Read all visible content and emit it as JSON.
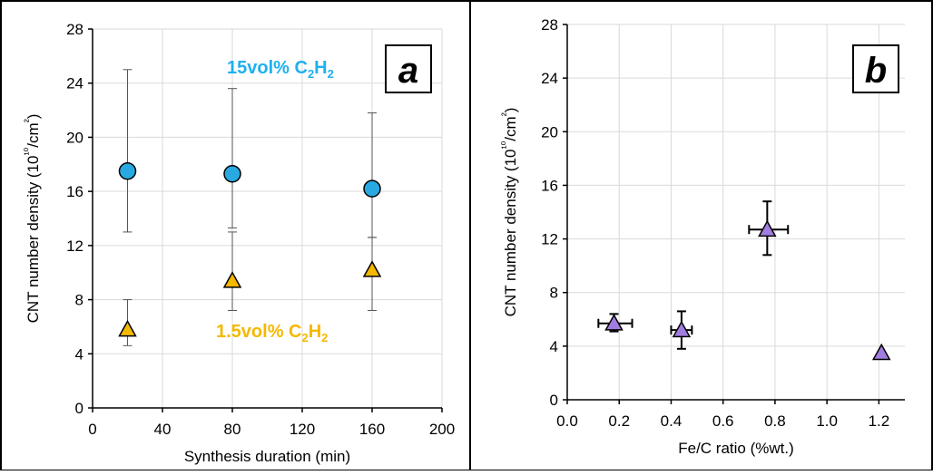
{
  "chart_data": [
    {
      "type": "scatter",
      "panel_label": "a",
      "xlabel": "Synthesis duration (min)",
      "ylabel": "CNT number density (10¹⁰/cm²)",
      "xlim": [
        0,
        200
      ],
      "ylim": [
        0,
        28
      ],
      "xticks": [
        0,
        40,
        80,
        120,
        160,
        200
      ],
      "yticks": [
        0,
        4,
        8,
        12,
        16,
        20,
        24,
        28
      ],
      "grid": true,
      "series": [
        {
          "name": "15vol% C2H2",
          "marker": "circle",
          "color": "#29a9e1",
          "label_color": "#1fb0ef",
          "points": [
            {
              "x": 20,
              "y": 17.5,
              "err_low": 13.0,
              "err_high": 25.0
            },
            {
              "x": 80,
              "y": 17.3,
              "err_low": 13.3,
              "err_high": 23.6
            },
            {
              "x": 160,
              "y": 16.2,
              "err_low": 12.6,
              "err_high": 21.8
            }
          ]
        },
        {
          "name": "1.5vol% C2H2",
          "marker": "triangle",
          "color": "#f5b800",
          "label_color": "#f5b800",
          "points": [
            {
              "x": 20,
              "y": 5.8,
              "err_low": 4.6,
              "err_high": 8.0
            },
            {
              "x": 80,
              "y": 9.4,
              "err_low": 7.2,
              "err_high": 13.0
            },
            {
              "x": 160,
              "y": 10.2,
              "err_low": 7.2,
              "err_high": 12.6
            }
          ]
        }
      ]
    },
    {
      "type": "scatter",
      "panel_label": "b",
      "xlabel": "Fe/C ratio (%wt.)",
      "ylabel": "CNT number density (10¹⁰/cm²)",
      "xlim": [
        0,
        1.3
      ],
      "ylim": [
        0,
        28
      ],
      "xticks": [
        "0.0",
        "0.2",
        "0.4",
        "0.6",
        "0.8",
        "1.0",
        "1.2"
      ],
      "yticks": [
        0,
        4,
        8,
        12,
        16,
        20,
        24,
        28
      ],
      "grid": true,
      "series": [
        {
          "name": "",
          "marker": "triangle",
          "color": "#a27de0",
          "points": [
            {
              "x": 0.18,
              "y": 5.7,
              "y_err_low": 5.1,
              "y_err_high": 6.4,
              "x_err_low": 0.12,
              "x_err_high": 0.25
            },
            {
              "x": 0.44,
              "y": 5.2,
              "y_err_low": 3.8,
              "y_err_high": 6.6,
              "x_err_low": 0.4,
              "x_err_high": 0.48
            },
            {
              "x": 0.77,
              "y": 12.7,
              "y_err_low": 10.8,
              "y_err_high": 14.8,
              "x_err_low": 0.7,
              "x_err_high": 0.85
            },
            {
              "x": 1.21,
              "y": 3.5
            }
          ]
        }
      ]
    }
  ]
}
